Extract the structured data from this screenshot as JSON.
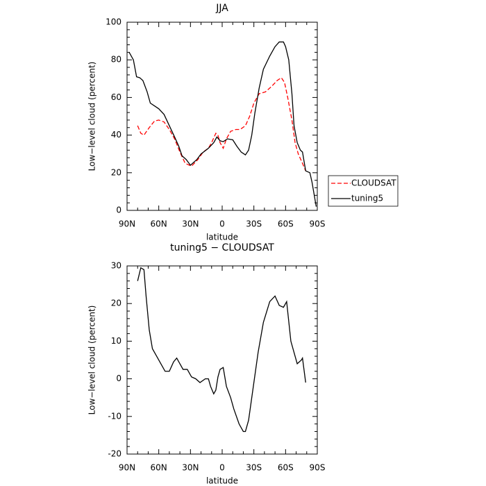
{
  "chart_data": [
    {
      "type": "line",
      "title": "JJA",
      "xlabel": "latitude",
      "ylabel": "Low−level cloud (percent)",
      "xlim": [
        90,
        -90
      ],
      "ylim": [
        0,
        100
      ],
      "xticks": [
        {
          "value": 90,
          "label": "90N"
        },
        {
          "value": 60,
          "label": "60N"
        },
        {
          "value": 30,
          "label": "30N"
        },
        0,
        {
          "value": -30,
          "label": "30S"
        },
        {
          "value": -60,
          "label": "60S"
        },
        {
          "value": -90,
          "label": "90S"
        }
      ],
      "yticks": [
        0,
        20,
        40,
        60,
        80,
        100
      ],
      "legend": "right",
      "series": [
        {
          "name": "CLOUDSAT",
          "color": "#ff0000",
          "linestyle": "dashed",
          "x": [
            80,
            77,
            74,
            69,
            64,
            60,
            55,
            50,
            45,
            40,
            35,
            29,
            23,
            18,
            13,
            10,
            6,
            4,
            2,
            -1,
            -4,
            -8,
            -13,
            -17,
            -22,
            -26,
            -30,
            -35,
            -41,
            -47,
            -52,
            -56,
            -59,
            -62,
            -66,
            -69,
            -72,
            -76,
            -79
          ],
          "values": [
            45,
            41,
            40,
            44,
            47.5,
            48,
            47,
            43,
            38,
            31,
            25,
            23.5,
            27,
            31,
            33,
            36,
            41,
            40,
            36,
            33,
            38,
            42,
            43,
            43,
            45,
            50,
            57,
            62,
            63,
            66,
            69,
            70.5,
            68,
            60,
            48,
            36,
            30,
            25,
            21
          ]
        },
        {
          "name": "tuning5",
          "color": "#000000",
          "linestyle": "solid",
          "x": [
            88,
            84,
            81,
            78,
            75,
            71,
            68,
            64,
            60,
            55,
            50,
            45,
            41,
            38,
            34,
            30,
            24,
            20,
            13,
            8,
            5,
            2,
            -1,
            -5,
            -10,
            -14,
            -18,
            -22,
            -25,
            -28,
            -31,
            -35,
            -39,
            -45,
            -50,
            -54,
            -58,
            -60,
            -63,
            -66,
            -68,
            -71,
            -74,
            -76,
            -79,
            -83,
            -85,
            -89
          ],
          "values": [
            84,
            80,
            71,
            70.5,
            69,
            63,
            57,
            55.5,
            54,
            51,
            45,
            39,
            34,
            29,
            27,
            24,
            27,
            30,
            33,
            36,
            39,
            37,
            36.5,
            38,
            37.5,
            34,
            31,
            29.5,
            32,
            40,
            52,
            65,
            75,
            82,
            87,
            89.5,
            89.5,
            87,
            80,
            62,
            45,
            36,
            32,
            31,
            21,
            20,
            15,
            2
          ]
        }
      ]
    },
    {
      "type": "line",
      "title": "tuning5 − CLOUDSAT",
      "xlabel": "latitude",
      "ylabel": "Low−level cloud (percent)",
      "xlim": [
        90,
        -90
      ],
      "ylim": [
        -20,
        30
      ],
      "xticks": [
        {
          "value": 90,
          "label": "90N"
        },
        {
          "value": 60,
          "label": "60N"
        },
        {
          "value": 30,
          "label": "30N"
        },
        0,
        {
          "value": -30,
          "label": "30S"
        },
        {
          "value": -60,
          "label": "60S"
        },
        {
          "value": -90,
          "label": "90S"
        }
      ],
      "yticks": [
        -20,
        -10,
        0,
        10,
        20,
        30
      ],
      "color": "#000000",
      "x": [
        80,
        77,
        74,
        72,
        69,
        66,
        62,
        58,
        54,
        50,
        46,
        43,
        40,
        37,
        33,
        29,
        25,
        21,
        16,
        13,
        11,
        8,
        6,
        4,
        2,
        -1,
        -4,
        -8,
        -11,
        -16,
        -20,
        -22,
        -25,
        -29,
        -34,
        -39,
        -45,
        -50,
        -54,
        -58,
        -61,
        -65,
        -69,
        -71,
        -75,
        -76,
        -79
      ],
      "values": [
        26,
        29.5,
        29,
        22,
        13,
        8,
        6,
        4,
        2,
        2,
        4.5,
        5.5,
        4,
        2.5,
        2.5,
        0.5,
        0,
        -1,
        0,
        0,
        -2,
        -4,
        -3,
        0.5,
        2.5,
        3,
        -2,
        -5,
        -8,
        -12,
        -14,
        -14,
        -11,
        -3,
        7,
        15,
        20.5,
        22,
        19.5,
        19,
        20.5,
        10,
        6,
        4,
        5,
        5.5,
        -1
      ]
    }
  ]
}
